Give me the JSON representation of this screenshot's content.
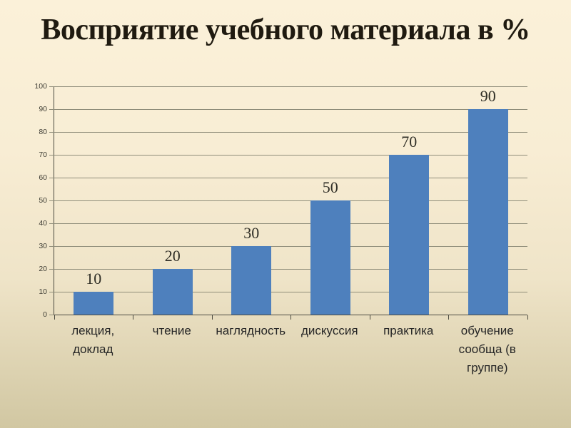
{
  "slide": {
    "title": "Восприятие учебного материала в %"
  },
  "chart_data": {
    "type": "bar",
    "title": "Восприятие учебного материала в %",
    "categories": [
      "лекция, доклад",
      "чтение",
      "наглядность",
      "дискуссия",
      "практика",
      "обучение сообща (в группе)"
    ],
    "values": [
      10,
      20,
      30,
      50,
      70,
      90
    ],
    "data_labels": [
      "10",
      "20",
      "30",
      "50",
      "70",
      "90"
    ],
    "y_tick_labels": [
      "0",
      "10",
      "20",
      "30",
      "40",
      "50",
      "60",
      "70",
      "80",
      "90",
      "100"
    ],
    "ylim": [
      0,
      100
    ],
    "ytick_step": 10,
    "grid": true,
    "legend": "none",
    "xlabel": "",
    "ylabel": "",
    "bar_color": "#4e80bd",
    "grid_color": "#8f8d7a",
    "axis_color": "#4c4b40",
    "background_top": "#fbf1d9",
    "background_bottom": "#d1c7a2"
  }
}
